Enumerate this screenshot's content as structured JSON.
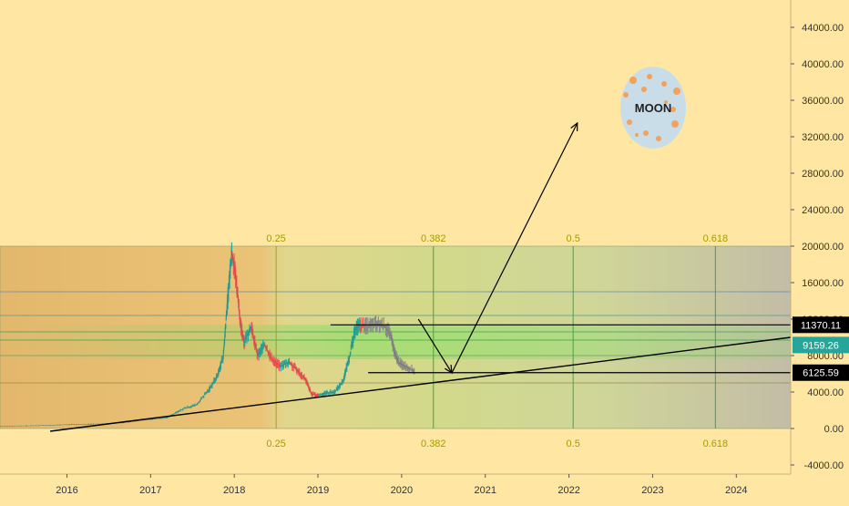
{
  "colors": {
    "background": "#ffe7a3",
    "candle_up": "#26a69a",
    "candle_down": "#ef5350",
    "fib_label": "#9e9e00",
    "line": "#000000",
    "moon": "#c8dde8",
    "moon_dot": "#f3a25a",
    "price_badge_up": "#26a69a"
  },
  "chart_data": {
    "type": "line",
    "title": "",
    "xlabel": "",
    "ylabel": "",
    "x_ticks": [
      "2016",
      "2017",
      "2018",
      "2019",
      "2020",
      "2021",
      "2022",
      "2023",
      "2024"
    ],
    "x_tick_years": [
      2016,
      2017,
      2018,
      2019,
      2020,
      2021,
      2022,
      2023,
      2024
    ],
    "xlim": [
      2015.2,
      2024.65
    ],
    "y_ticks": [
      "-4000.00",
      "0.00",
      "4000.00",
      "8000.00",
      "12000.00",
      "16000.00",
      "20000.00",
      "24000.00",
      "28000.00",
      "32000.00",
      "36000.00",
      "40000.00",
      "44000.00"
    ],
    "y_tick_values": [
      -4000,
      0,
      4000,
      8000,
      12000,
      16000,
      20000,
      24000,
      28000,
      32000,
      36000,
      40000,
      44000
    ],
    "ylim": [
      -5000,
      47000
    ],
    "grid": false,
    "series": [
      {
        "x": [
          2015.2,
          2015.6,
          2016.0,
          2016.4,
          2016.7,
          2017.0,
          2017.2,
          2017.4,
          2017.55,
          2017.7,
          2017.8,
          2017.87,
          2017.92,
          2017.97,
          2018.02,
          2018.08,
          2018.12,
          2018.2,
          2018.28,
          2018.36,
          2018.45,
          2018.55,
          2018.65,
          2018.75,
          2018.85,
          2018.92,
          2019.0,
          2019.1,
          2019.2,
          2019.3,
          2019.38,
          2019.45,
          2019.5,
          2019.58,
          2019.7,
          2019.8,
          2019.87,
          2019.92,
          2019.97,
          2020.05,
          2020.15
        ],
        "y": [
          250,
          300,
          420,
          500,
          650,
          1000,
          1200,
          2200,
          2600,
          4300,
          5800,
          8000,
          14000,
          19500,
          16500,
          11000,
          9500,
          11200,
          8000,
          9200,
          7600,
          6800,
          7300,
          6400,
          5400,
          3800,
          3600,
          3900,
          4000,
          5200,
          8000,
          11000,
          11300,
          11200,
          11400,
          11200,
          10200,
          8200,
          7200,
          6800,
          6300
        ]
      }
    ],
    "fib_levels": [
      "0.25",
      "0.382",
      "0.5",
      "0.618"
    ],
    "fib_years": [
      2018.5,
      2020.38,
      2022.05,
      2023.75
    ],
    "fib_zone_y": [
      0,
      20000
    ],
    "price_labels": [
      "11370.11",
      "9159.26",
      "6125.59"
    ],
    "price_values": [
      11370.11,
      9159.26,
      6125.59
    ],
    "support_trend": {
      "x": [
        2015.8,
        2024.65
      ],
      "y": [
        -300,
        10000
      ]
    },
    "resistance": {
      "x": [
        2019.15,
        2024.65
      ],
      "y": [
        11370.11,
        11370.11
      ]
    },
    "support": {
      "x": [
        2019.6,
        2024.65
      ],
      "y": [
        6125.59,
        6125.59
      ]
    },
    "projection": {
      "x": [
        2020.2,
        2020.6,
        2022.1
      ],
      "y": [
        12000,
        6100,
        33500
      ]
    },
    "moon_label": "MOON"
  }
}
